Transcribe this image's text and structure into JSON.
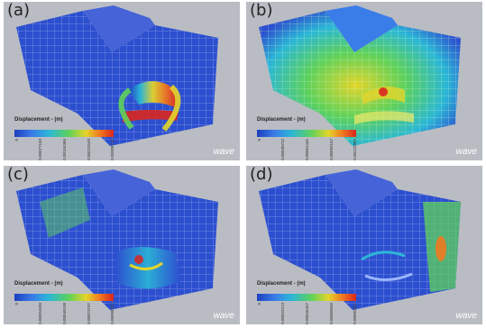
{
  "panels": [
    {
      "label": "(a)",
      "caption": "Displacement - (m)",
      "ticks": [
        "0",
        "0.00077183",
        "0.00154366",
        "0.00231549",
        "0.00308733"
      ],
      "brand": "wave"
    },
    {
      "label": "(b)",
      "caption": "Displacement - (m)",
      "ticks": [
        "0",
        "0.00030722",
        "0.00061445",
        "0.00092167",
        "0.00122889"
      ],
      "brand": "wave"
    },
    {
      "label": "(c)",
      "caption": "Displacement - (m)",
      "ticks": [
        "0",
        "0.00024599",
        "0.00049198",
        "0.00073797",
        "0.00098396"
      ],
      "brand": "wave"
    },
    {
      "label": "(d)",
      "caption": "Displacement - (m)",
      "ticks": [
        "0",
        "0.00023213",
        "0.00046427",
        "0.00069640",
        "0.00092854"
      ],
      "brand": "wave"
    }
  ],
  "colors": {
    "low": "#1d3fbf",
    "mid": "#5fd15a",
    "high": "#d9261e",
    "background": "#b9bcc3"
  }
}
